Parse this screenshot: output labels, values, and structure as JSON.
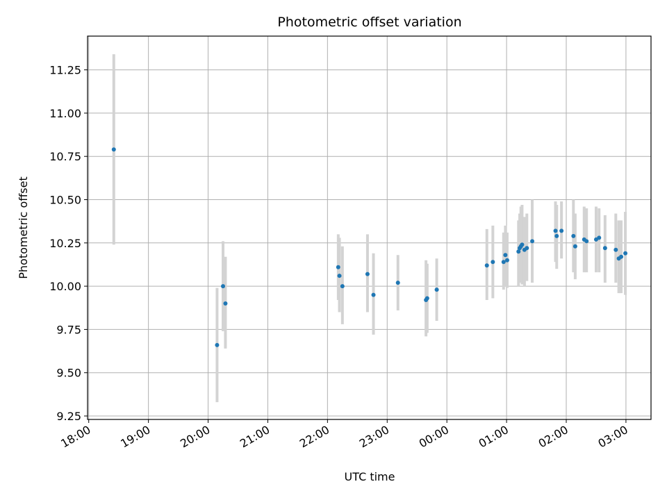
{
  "chart_data": {
    "type": "scatter",
    "title": "Photometric offset variation",
    "xlabel": "UTC time",
    "ylabel": "Photometric offset",
    "x_unit": "hours (UTC, 18:00 start)",
    "xlim": [
      17.98,
      27.42
    ],
    "ylim": [
      9.23,
      11.445
    ],
    "grid": true,
    "point_color": "#1f77b4",
    "errorbar_color": "#d3d3d3",
    "x_ticks": [
      {
        "value": 18,
        "label": "18:00"
      },
      {
        "value": 19,
        "label": "19:00"
      },
      {
        "value": 20,
        "label": "20:00"
      },
      {
        "value": 21,
        "label": "21:00"
      },
      {
        "value": 22,
        "label": "22:00"
      },
      {
        "value": 23,
        "label": "23:00"
      },
      {
        "value": 24,
        "label": "00:00"
      },
      {
        "value": 25,
        "label": "01:00"
      },
      {
        "value": 26,
        "label": "02:00"
      },
      {
        "value": 27,
        "label": "03:00"
      }
    ],
    "y_ticks": [
      {
        "value": 9.25,
        "label": "9.25"
      },
      {
        "value": 9.5,
        "label": "9.50"
      },
      {
        "value": 9.75,
        "label": "9.75"
      },
      {
        "value": 10.0,
        "label": "10.00"
      },
      {
        "value": 10.25,
        "label": "10.25"
      },
      {
        "value": 10.5,
        "label": "10.50"
      },
      {
        "value": 10.75,
        "label": "10.75"
      },
      {
        "value": 11.0,
        "label": "11.00"
      },
      {
        "value": 11.25,
        "label": "11.25"
      }
    ],
    "points": [
      {
        "x": 18.42,
        "y": 10.79,
        "ylo": 10.24,
        "yhi": 11.34
      },
      {
        "x": 20.15,
        "y": 9.66,
        "ylo": 9.33,
        "yhi": 9.99
      },
      {
        "x": 20.25,
        "y": 10.0,
        "ylo": 9.74,
        "yhi": 10.26
      },
      {
        "x": 20.29,
        "y": 9.9,
        "ylo": 9.64,
        "yhi": 10.17
      },
      {
        "x": 22.18,
        "y": 10.11,
        "ylo": 9.92,
        "yhi": 10.3
      },
      {
        "x": 22.2,
        "y": 10.06,
        "ylo": 9.85,
        "yhi": 10.28
      },
      {
        "x": 22.25,
        "y": 10.0,
        "ylo": 9.78,
        "yhi": 10.23
      },
      {
        "x": 22.67,
        "y": 10.07,
        "ylo": 9.85,
        "yhi": 10.3
      },
      {
        "x": 22.77,
        "y": 9.95,
        "ylo": 9.72,
        "yhi": 10.19
      },
      {
        "x": 23.18,
        "y": 10.02,
        "ylo": 9.86,
        "yhi": 10.18
      },
      {
        "x": 23.65,
        "y": 9.92,
        "ylo": 9.71,
        "yhi": 10.15
      },
      {
        "x": 23.67,
        "y": 9.93,
        "ylo": 9.73,
        "yhi": 10.13
      },
      {
        "x": 23.83,
        "y": 9.98,
        "ylo": 9.8,
        "yhi": 10.16
      },
      {
        "x": 24.67,
        "y": 10.12,
        "ylo": 9.92,
        "yhi": 10.33
      },
      {
        "x": 24.77,
        "y": 10.14,
        "ylo": 9.93,
        "yhi": 10.35
      },
      {
        "x": 24.95,
        "y": 10.14,
        "ylo": 9.98,
        "yhi": 10.31
      },
      {
        "x": 24.98,
        "y": 10.18,
        "ylo": 10.0,
        "yhi": 10.35
      },
      {
        "x": 25.01,
        "y": 10.15,
        "ylo": 9.99,
        "yhi": 10.31
      },
      {
        "x": 25.2,
        "y": 10.2,
        "ylo": 10.0,
        "yhi": 10.38
      },
      {
        "x": 25.22,
        "y": 10.22,
        "ylo": 10.02,
        "yhi": 10.42
      },
      {
        "x": 25.24,
        "y": 10.23,
        "ylo": 10.03,
        "yhi": 10.46
      },
      {
        "x": 25.26,
        "y": 10.24,
        "ylo": 10.01,
        "yhi": 10.47
      },
      {
        "x": 25.3,
        "y": 10.21,
        "ylo": 10.0,
        "yhi": 10.4
      },
      {
        "x": 25.34,
        "y": 10.22,
        "ylo": 10.03,
        "yhi": 10.42
      },
      {
        "x": 25.43,
        "y": 10.26,
        "ylo": 10.02,
        "yhi": 10.5
      },
      {
        "x": 25.82,
        "y": 10.32,
        "ylo": 10.14,
        "yhi": 10.49
      },
      {
        "x": 25.84,
        "y": 10.29,
        "ylo": 10.1,
        "yhi": 10.47
      },
      {
        "x": 25.92,
        "y": 10.32,
        "ylo": 10.16,
        "yhi": 10.49
      },
      {
        "x": 26.12,
        "y": 10.29,
        "ylo": 10.08,
        "yhi": 10.5
      },
      {
        "x": 26.15,
        "y": 10.23,
        "ylo": 10.04,
        "yhi": 10.42
      },
      {
        "x": 26.3,
        "y": 10.27,
        "ylo": 10.08,
        "yhi": 10.46
      },
      {
        "x": 26.34,
        "y": 10.26,
        "ylo": 10.08,
        "yhi": 10.45
      },
      {
        "x": 26.5,
        "y": 10.27,
        "ylo": 10.08,
        "yhi": 10.46
      },
      {
        "x": 26.55,
        "y": 10.28,
        "ylo": 10.08,
        "yhi": 10.45
      },
      {
        "x": 26.65,
        "y": 10.22,
        "ylo": 10.02,
        "yhi": 10.41
      },
      {
        "x": 26.83,
        "y": 10.21,
        "ylo": 10.02,
        "yhi": 10.42
      },
      {
        "x": 26.88,
        "y": 10.16,
        "ylo": 9.96,
        "yhi": 10.38
      },
      {
        "x": 26.92,
        "y": 10.17,
        "ylo": 9.96,
        "yhi": 10.38
      },
      {
        "x": 26.99,
        "y": 10.19,
        "ylo": 9.95,
        "yhi": 10.43
      }
    ]
  }
}
